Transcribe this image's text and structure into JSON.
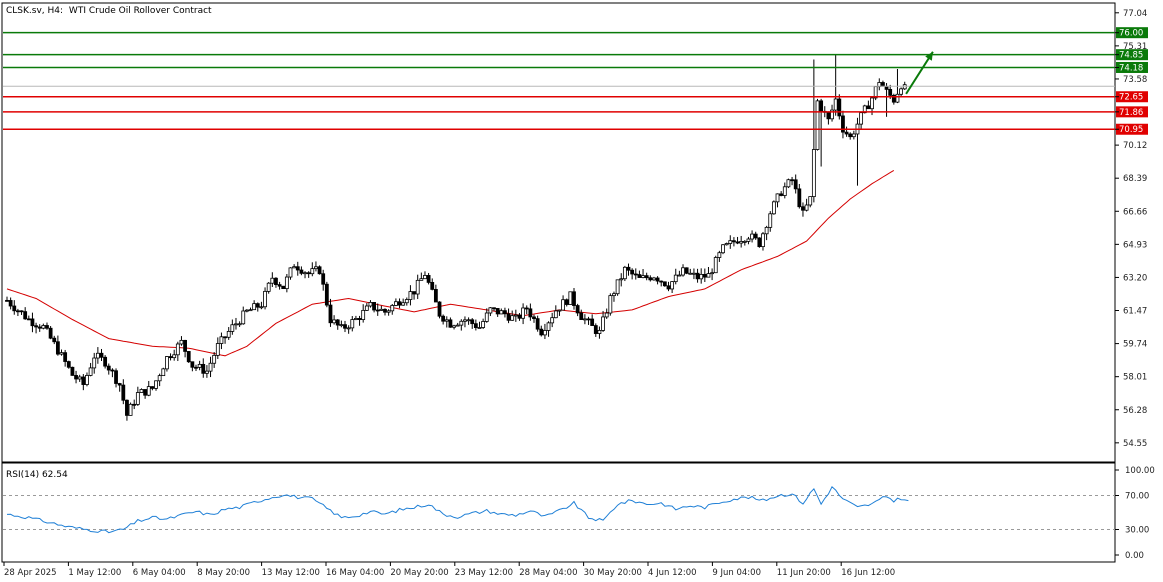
{
  "header": {
    "symbol_timeframe": "CLSK.sv, H4:",
    "instrument": "WTI Crude Oil Rollover Contract"
  },
  "rsi_label": "RSI(14) 62.54",
  "colors": {
    "bull": "#000000",
    "bear": "#000000",
    "ma": "#d40000",
    "support": "#e00000",
    "resistance": "#0a7a0a",
    "rsi": "#1e7fd6",
    "arrow": "#0a7a0a"
  },
  "chart_data": [
    {
      "type": "line",
      "name": "price",
      "price_axis": {
        "ylim": [
          53.6,
          77.5
        ],
        "ticks": [
          "77.04",
          "76.00",
          "75.31",
          "74.85",
          "74.18",
          "73.58",
          "72.65",
          "71.86",
          "70.95",
          "70.12",
          "68.39",
          "66.66",
          "64.93",
          "63.20",
          "61.47",
          "59.74",
          "58.01",
          "56.28",
          "54.55"
        ]
      },
      "x_axis": {
        "labels": [
          "28 Apr 2025",
          "1 May 12:00",
          "6 May 04:00",
          "8 May 20:00",
          "13 May 12:00",
          "16 May 04:00",
          "20 May 20:00",
          "23 May 12:00",
          "28 May 04:00",
          "30 May 20:00",
          "4 Jun 12:00",
          "9 Jun 04:00",
          "11 Jun 20:00",
          "16 Jun 12:00"
        ]
      },
      "close_anchors": [
        [
          0,
          62.0
        ],
        [
          6,
          61.0
        ],
        [
          10,
          60.6
        ],
        [
          14,
          59.4
        ],
        [
          18,
          58.1
        ],
        [
          21,
          57.6
        ],
        [
          24,
          59.1
        ],
        [
          27,
          58.8
        ],
        [
          31,
          57.6
        ],
        [
          33,
          56.0
        ],
        [
          36,
          57.1
        ],
        [
          40,
          57.4
        ],
        [
          44,
          59.0
        ],
        [
          48,
          59.8
        ],
        [
          51,
          58.6
        ],
        [
          55,
          58.3
        ],
        [
          58,
          59.6
        ],
        [
          62,
          60.6
        ],
        [
          66,
          61.4
        ],
        [
          70,
          61.8
        ],
        [
          73,
          63.2
        ],
        [
          76,
          62.7
        ],
        [
          79,
          63.9
        ],
        [
          83,
          63.4
        ],
        [
          86,
          63.6
        ],
        [
          89,
          61.0
        ],
        [
          92,
          60.5
        ],
        [
          96,
          61.0
        ],
        [
          100,
          61.7
        ],
        [
          104,
          61.4
        ],
        [
          108,
          62.0
        ],
        [
          112,
          62.5
        ],
        [
          115,
          63.4
        ],
        [
          119,
          61.3
        ],
        [
          122,
          60.8
        ],
        [
          126,
          61.0
        ],
        [
          130,
          60.6
        ],
        [
          133,
          61.5
        ],
        [
          137,
          61.3
        ],
        [
          140,
          61.0
        ],
        [
          143,
          61.6
        ],
        [
          147,
          60.4
        ],
        [
          151,
          61.5
        ],
        [
          155,
          62.2
        ],
        [
          158,
          61.2
        ],
        [
          161,
          60.6
        ],
        [
          163,
          60.3
        ],
        [
          166,
          62.1
        ],
        [
          170,
          63.6
        ],
        [
          174,
          63.1
        ],
        [
          178,
          63.3
        ],
        [
          182,
          62.8
        ],
        [
          186,
          63.5
        ],
        [
          190,
          63.2
        ],
        [
          193,
          63.3
        ],
        [
          197,
          64.7
        ],
        [
          201,
          65.2
        ],
        [
          204,
          65.4
        ],
        [
          207,
          65.0
        ],
        [
          210,
          66.6
        ],
        [
          213,
          67.7
        ],
        [
          216,
          68.3
        ],
        [
          219,
          66.5
        ],
        [
          221,
          67.3
        ],
        [
          223,
          72.4
        ],
        [
          226,
          71.4
        ],
        [
          228,
          72.5
        ],
        [
          230,
          71.0
        ],
        [
          232,
          70.5
        ],
        [
          235,
          71.6
        ],
        [
          238,
          72.6
        ],
        [
          240,
          73.5
        ],
        [
          242,
          72.9
        ],
        [
          244,
          72.5
        ],
        [
          246,
          73.3
        ],
        [
          248,
          72.8
        ]
      ],
      "wick_spikes": [
        [
          222,
          74.6
        ],
        [
          228,
          74.85
        ],
        [
          224,
          69.0
        ],
        [
          234,
          68.0
        ],
        [
          245,
          74.1
        ],
        [
          242,
          71.6
        ]
      ],
      "moving_average": {
        "anchors": [
          [
            0,
            62.6
          ],
          [
            8,
            62.1
          ],
          [
            18,
            61.0
          ],
          [
            28,
            60.0
          ],
          [
            40,
            59.6
          ],
          [
            50,
            59.5
          ],
          [
            60,
            59.1
          ],
          [
            66,
            59.6
          ],
          [
            74,
            60.8
          ],
          [
            84,
            61.8
          ],
          [
            94,
            62.1
          ],
          [
            104,
            61.7
          ],
          [
            112,
            61.4
          ],
          [
            122,
            61.8
          ],
          [
            132,
            61.5
          ],
          [
            142,
            61.2
          ],
          [
            152,
            61.5
          ],
          [
            162,
            61.3
          ],
          [
            172,
            61.5
          ],
          [
            182,
            62.2
          ],
          [
            192,
            62.6
          ],
          [
            202,
            63.6
          ],
          [
            212,
            64.3
          ],
          [
            220,
            65.1
          ],
          [
            226,
            66.3
          ],
          [
            232,
            67.3
          ],
          [
            238,
            68.1
          ],
          [
            244,
            68.8
          ]
        ]
      },
      "levels": [
        {
          "value": 76.0,
          "label": "76.00",
          "kind": "resistance"
        },
        {
          "value": 74.85,
          "label": "74.85",
          "kind": "resistance"
        },
        {
          "value": 74.18,
          "label": "74.18",
          "kind": "resistance"
        },
        {
          "value": 72.65,
          "label": "72.65",
          "kind": "support"
        },
        {
          "value": 71.86,
          "label": "71.86",
          "kind": "support"
        },
        {
          "value": 70.95,
          "label": "70.95",
          "kind": "support"
        }
      ],
      "current_price": 73.2,
      "arrow": {
        "from": [
          246,
          72.8
        ],
        "to": [
          252,
          75.0
        ]
      }
    },
    {
      "type": "line",
      "name": "RSI(14)",
      "rsi_axis": {
        "ylim": [
          0,
          100
        ],
        "ticks": [
          "100.00",
          "70.00",
          "30.00",
          "0.00"
        ],
        "levels": [
          70,
          30
        ]
      },
      "anchors": [
        [
          0,
          48
        ],
        [
          6,
          44
        ],
        [
          12,
          38
        ],
        [
          17,
          33
        ],
        [
          22,
          30
        ],
        [
          28,
          27
        ],
        [
          32,
          30
        ],
        [
          36,
          40
        ],
        [
          40,
          44
        ],
        [
          44,
          42
        ],
        [
          48,
          47
        ],
        [
          52,
          51
        ],
        [
          56,
          47
        ],
        [
          60,
          54
        ],
        [
          64,
          56
        ],
        [
          68,
          62
        ],
        [
          72,
          67
        ],
        [
          76,
          71
        ],
        [
          80,
          68
        ],
        [
          84,
          66
        ],
        [
          88,
          55
        ],
        [
          92,
          44
        ],
        [
          96,
          46
        ],
        [
          100,
          51
        ],
        [
          104,
          48
        ],
        [
          108,
          53
        ],
        [
          112,
          56
        ],
        [
          116,
          60
        ],
        [
          120,
          48
        ],
        [
          124,
          45
        ],
        [
          128,
          49
        ],
        [
          132,
          52
        ],
        [
          136,
          48
        ],
        [
          140,
          47
        ],
        [
          144,
          52
        ],
        [
          148,
          45
        ],
        [
          152,
          52
        ],
        [
          156,
          61
        ],
        [
          160,
          44
        ],
        [
          164,
          40
        ],
        [
          168,
          60
        ],
        [
          172,
          64
        ],
        [
          176,
          60
        ],
        [
          180,
          61
        ],
        [
          184,
          54
        ],
        [
          188,
          58
        ],
        [
          192,
          56
        ],
        [
          196,
          62
        ],
        [
          200,
          66
        ],
        [
          204,
          68
        ],
        [
          208,
          64
        ],
        [
          212,
          70
        ],
        [
          216,
          72
        ],
        [
          219,
          61
        ],
        [
          222,
          78
        ],
        [
          224,
          60
        ],
        [
          227,
          80
        ],
        [
          230,
          66
        ],
        [
          234,
          56
        ],
        [
          238,
          60
        ],
        [
          242,
          69
        ],
        [
          244,
          64
        ],
        [
          246,
          67
        ],
        [
          248,
          63
        ]
      ]
    }
  ]
}
